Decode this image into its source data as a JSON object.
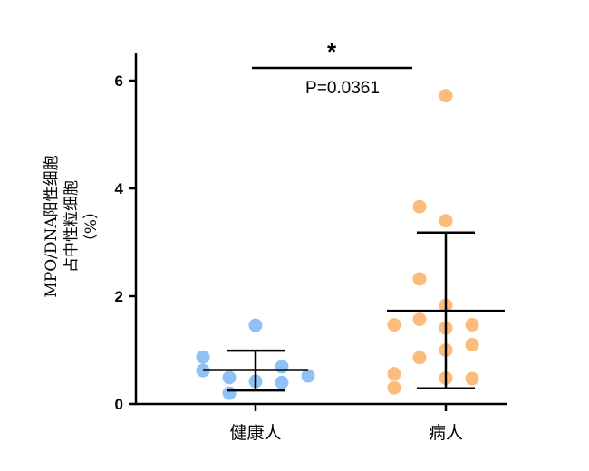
{
  "chart_data": {
    "type": "scatter",
    "title": "",
    "xlabel": "",
    "ylabel_lines": [
      "MPO/DNA阳性细胞",
      "占中性粒细胞",
      "（%）"
    ],
    "categories": [
      "健康人",
      "病人"
    ],
    "ylim": [
      0,
      6.5
    ],
    "yticks": [
      0,
      2,
      4,
      6
    ],
    "grid": false,
    "series": [
      {
        "name": "健康人",
        "color": "#8fc1f5",
        "values": [
          0.87,
          0.62,
          0.49,
          0.2,
          0.42,
          1.46,
          0.69,
          0.4,
          0.52
        ],
        "mean": 0.63,
        "sd_upper": 0.99,
        "sd_lower": 0.25
      },
      {
        "name": "病人",
        "color": "#fbbc7d",
        "values": [
          5.72,
          3.66,
          3.4,
          2.32,
          1.83,
          1.47,
          1.57,
          1.41,
          1.47,
          1.1,
          1.0,
          0.86,
          0.56,
          0.3,
          0.48,
          0.47
        ],
        "mean": 1.73,
        "sd_upper": 3.18,
        "sd_lower": 0.29
      }
    ],
    "annotations": {
      "significance": "*",
      "p_value": "P=0.0361"
    }
  }
}
